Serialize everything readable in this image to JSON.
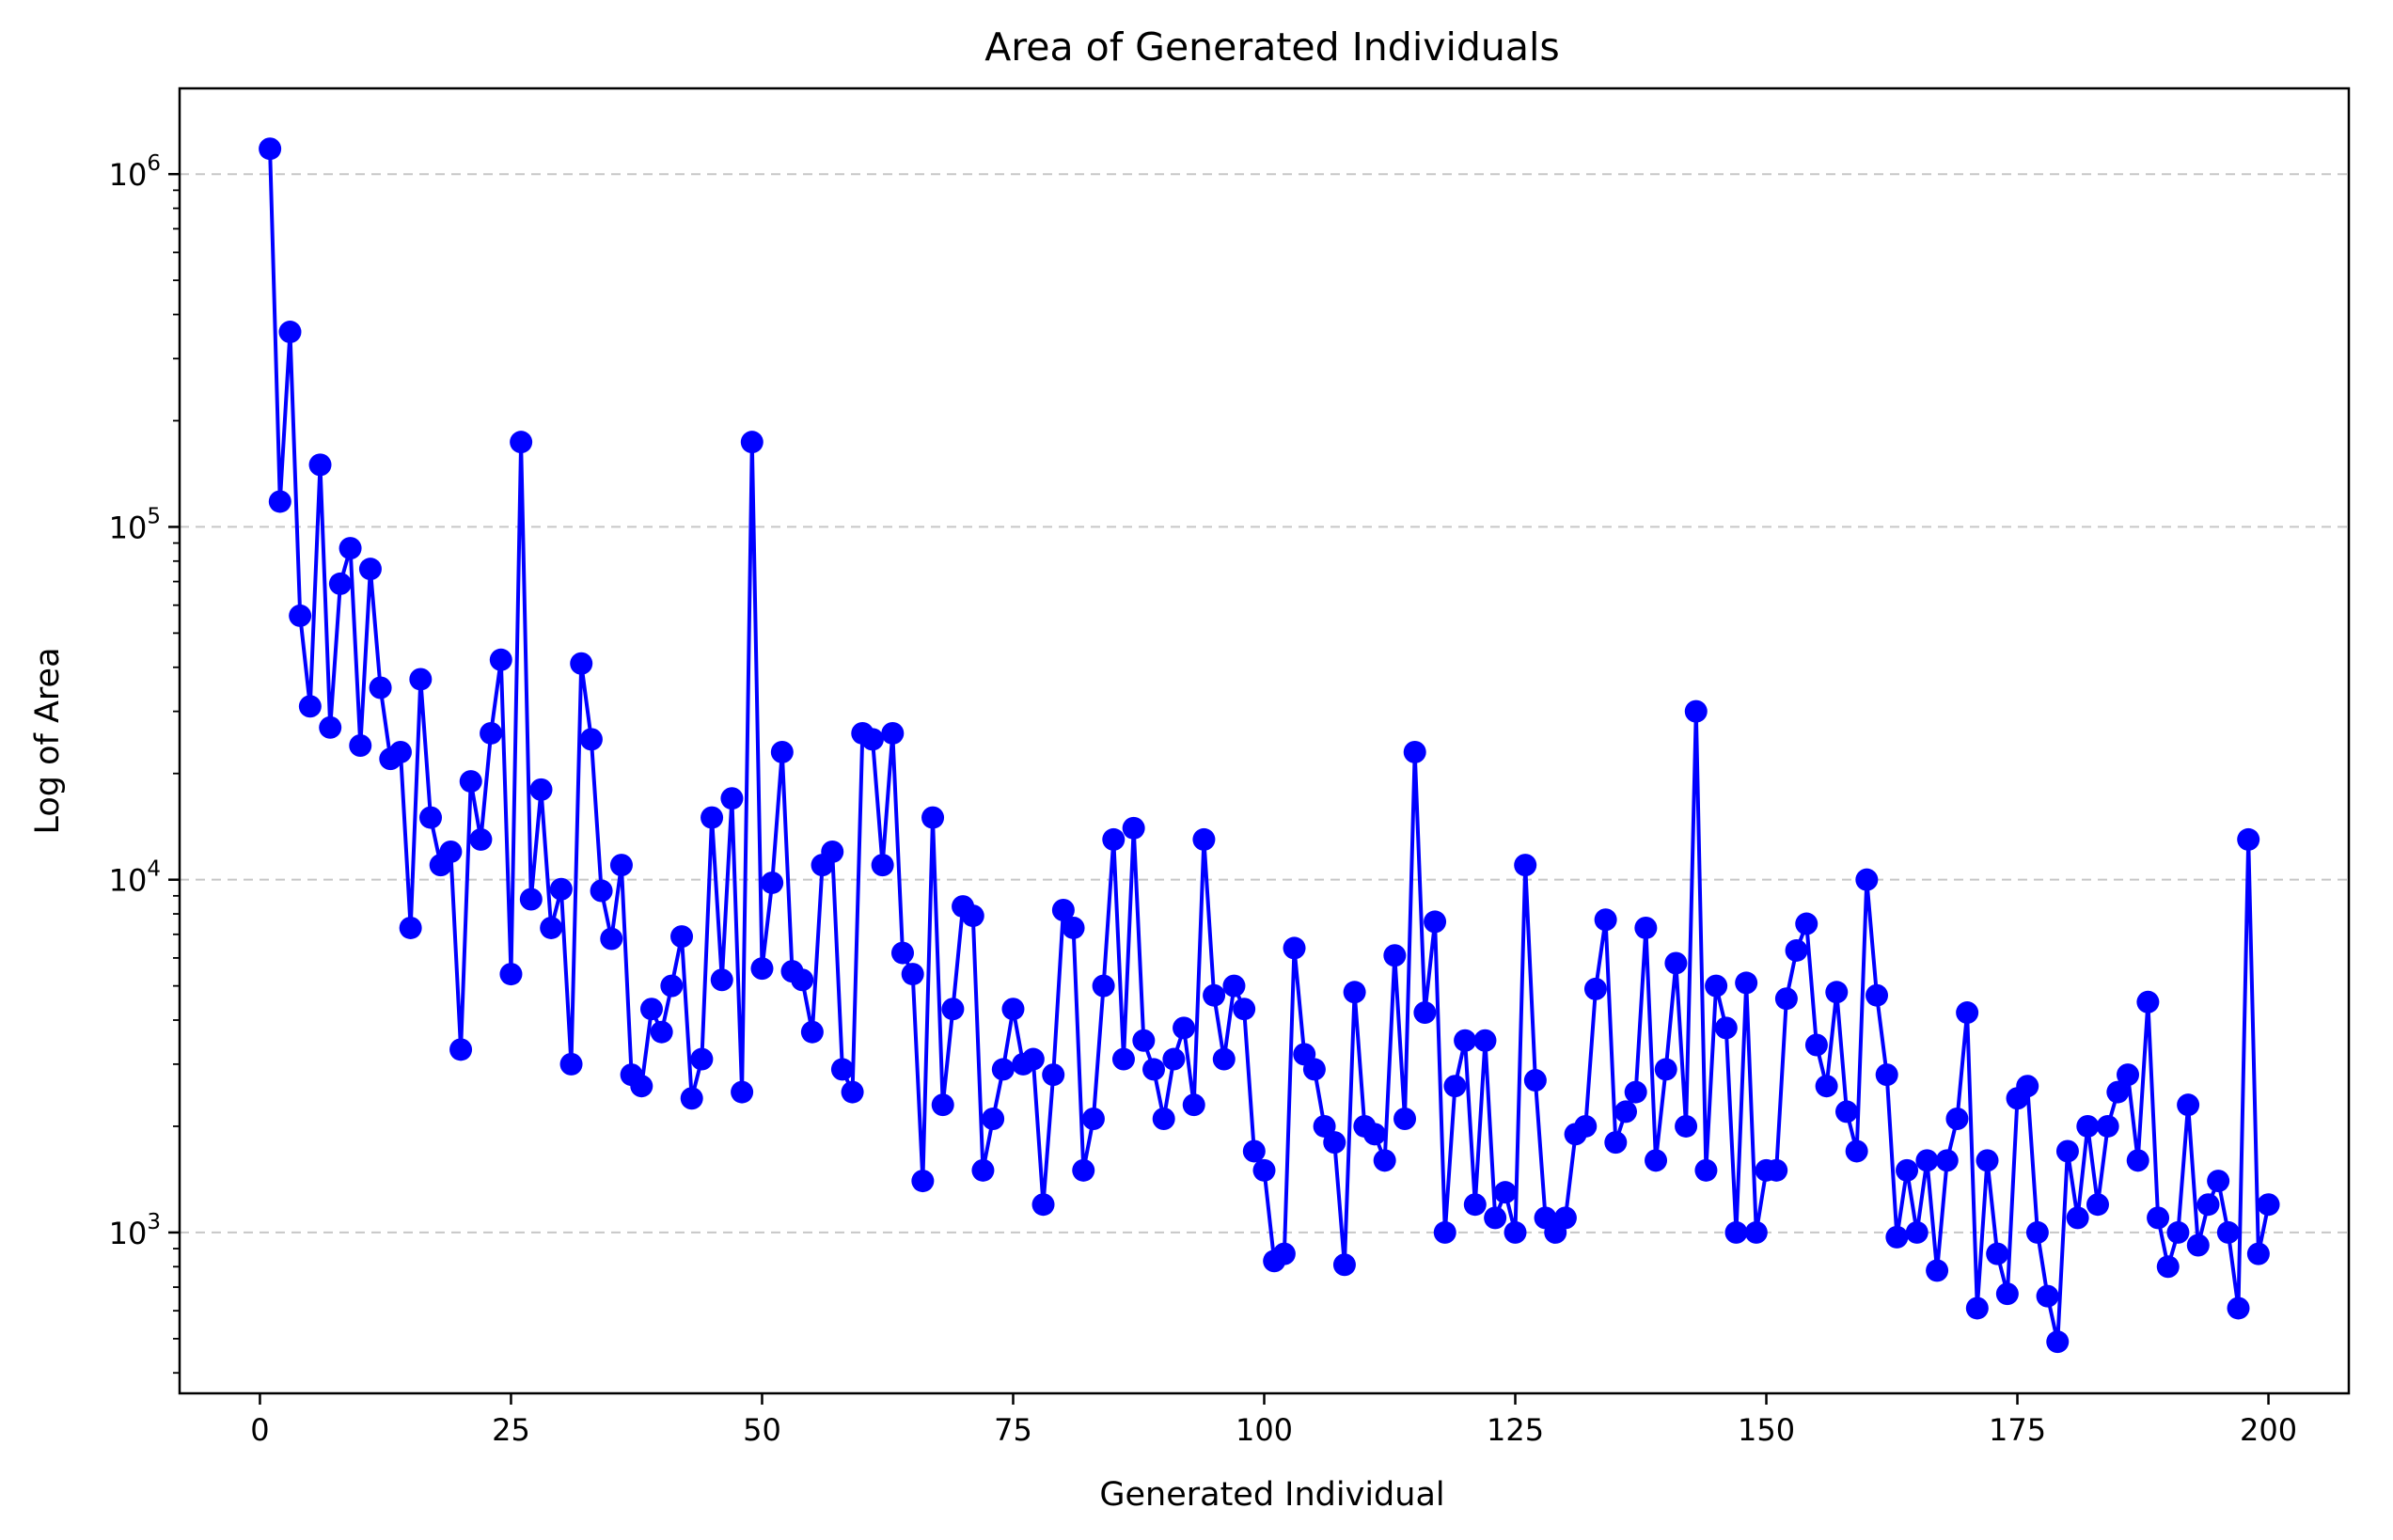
{
  "chart_data": {
    "type": "line",
    "title": "Area of Generated Individuals",
    "xlabel": "Generated Individual",
    "ylabel": "Log of Area",
    "yscale": "log",
    "xlim": [
      -8,
      208
    ],
    "ylim": [
      350,
      1750000
    ],
    "xticks": [
      0,
      25,
      50,
      75,
      100,
      125,
      150,
      175,
      200
    ],
    "xtick_labels": [
      "0",
      "25",
      "50",
      "75",
      "100",
      "125",
      "150",
      "175",
      "200"
    ],
    "yticks": [
      1000,
      10000,
      100000,
      1000000
    ],
    "ytick_labels": [
      {
        "base": "10",
        "exp": "3"
      },
      {
        "base": "10",
        "exp": "4"
      },
      {
        "base": "10",
        "exp": "5"
      },
      {
        "base": "10",
        "exp": "6"
      }
    ],
    "grid": "y-major-dashed",
    "colors": {
      "series": "#0000ff",
      "grid": "#b0b0b0",
      "axes": "#000000"
    },
    "series": [
      {
        "name": "Area",
        "marker": "circle",
        "x": [
          1,
          2,
          3,
          4,
          5,
          6,
          7,
          8,
          9,
          10,
          11,
          12,
          13,
          14,
          15,
          16,
          17,
          18,
          19,
          20,
          21,
          22,
          23,
          24,
          25,
          26,
          27,
          28,
          29,
          30,
          31,
          32,
          33,
          34,
          35,
          36,
          37,
          38,
          39,
          40,
          41,
          42,
          43,
          44,
          45,
          46,
          47,
          48,
          49,
          50,
          51,
          52,
          53,
          54,
          55,
          56,
          57,
          58,
          59,
          60,
          61,
          62,
          63,
          64,
          65,
          66,
          67,
          68,
          69,
          70,
          71,
          72,
          73,
          74,
          75,
          76,
          77,
          78,
          79,
          80,
          81,
          82,
          83,
          84,
          85,
          86,
          87,
          88,
          89,
          90,
          91,
          92,
          93,
          94,
          95,
          96,
          97,
          98,
          99,
          100,
          101,
          102,
          103,
          104,
          105,
          106,
          107,
          108,
          109,
          110,
          111,
          112,
          113,
          114,
          115,
          116,
          117,
          118,
          119,
          120,
          121,
          122,
          123,
          124,
          125,
          126,
          127,
          128,
          129,
          130,
          131,
          132,
          133,
          134,
          135,
          136,
          137,
          138,
          139,
          140,
          141,
          142,
          143,
          144,
          145,
          146,
          147,
          148,
          149,
          150,
          151,
          152,
          153,
          154,
          155,
          156,
          157,
          158,
          159,
          160,
          161,
          162,
          163,
          164,
          165,
          166,
          167,
          168,
          169,
          170,
          171,
          172,
          173,
          174,
          175,
          176,
          177,
          178,
          179,
          180,
          181,
          182,
          183,
          184,
          185,
          186,
          187,
          188,
          189,
          190,
          191,
          192,
          193,
          194,
          195,
          196,
          197,
          198,
          199,
          200
        ],
        "values": [
          1180000,
          118000,
          357000,
          56000,
          31000,
          150000,
          27000,
          69000,
          87000,
          24000,
          76000,
          35000,
          22000,
          23000,
          7300,
          37000,
          15000,
          11000,
          12000,
          3300,
          19000,
          13000,
          26000,
          42000,
          5400,
          174000,
          8800,
          18000,
          7300,
          9400,
          3000,
          41000,
          25000,
          9300,
          6800,
          11000,
          2800,
          2600,
          4300,
          3700,
          5000,
          6900,
          2400,
          3100,
          15000,
          5200,
          17000,
          2500,
          174000,
          5600,
          9800,
          23000,
          5500,
          5200,
          3700,
          11000,
          12000,
          2900,
          2500,
          26000,
          25000,
          11000,
          26000,
          6200,
          5400,
          1400,
          15000,
          2300,
          4300,
          8400,
          7900,
          1500,
          2100,
          2900,
          4300,
          3000,
          3100,
          1200,
          2800,
          8200,
          7300,
          1500,
          2100,
          5000,
          13000,
          3100,
          14000,
          3500,
          2900,
          2100,
          3100,
          3800,
          2300,
          13000,
          4700,
          3100,
          5000,
          4300,
          1700,
          1500,
          830,
          870,
          6400,
          3200,
          2900,
          2000,
          1800,
          810,
          4800,
          2000,
          1900,
          1600,
          6100,
          2100,
          23000,
          4200,
          7600,
          1000,
          2600,
          3500,
          1200,
          3500,
          1100,
          1300,
          1000,
          11000,
          2700,
          1100,
          1000,
          1100,
          1900,
          2000,
          4900,
          7700,
          1800,
          2200,
          2500,
          7300,
          1600,
          2900,
          5800,
          2000,
          30000,
          1500,
          5000,
          3800,
          1000,
          5100,
          1000,
          1500,
          1500,
          4600,
          6300,
          7500,
          3400,
          2600,
          4800,
          2200,
          1700,
          10000,
          4700,
          2800,
          970,
          1500,
          1000,
          1600,
          780,
          1600,
          2100,
          4200,
          610,
          1600,
          870,
          670,
          2400,
          2600,
          1000,
          660,
          490,
          1700,
          1100,
          2000,
          1200,
          2000,
          2500,
          2800,
          1600,
          4500,
          1100,
          800,
          1000,
          2300,
          920,
          1200,
          1400,
          1000,
          610,
          13000,
          870,
          1200
        ]
      }
    ]
  }
}
